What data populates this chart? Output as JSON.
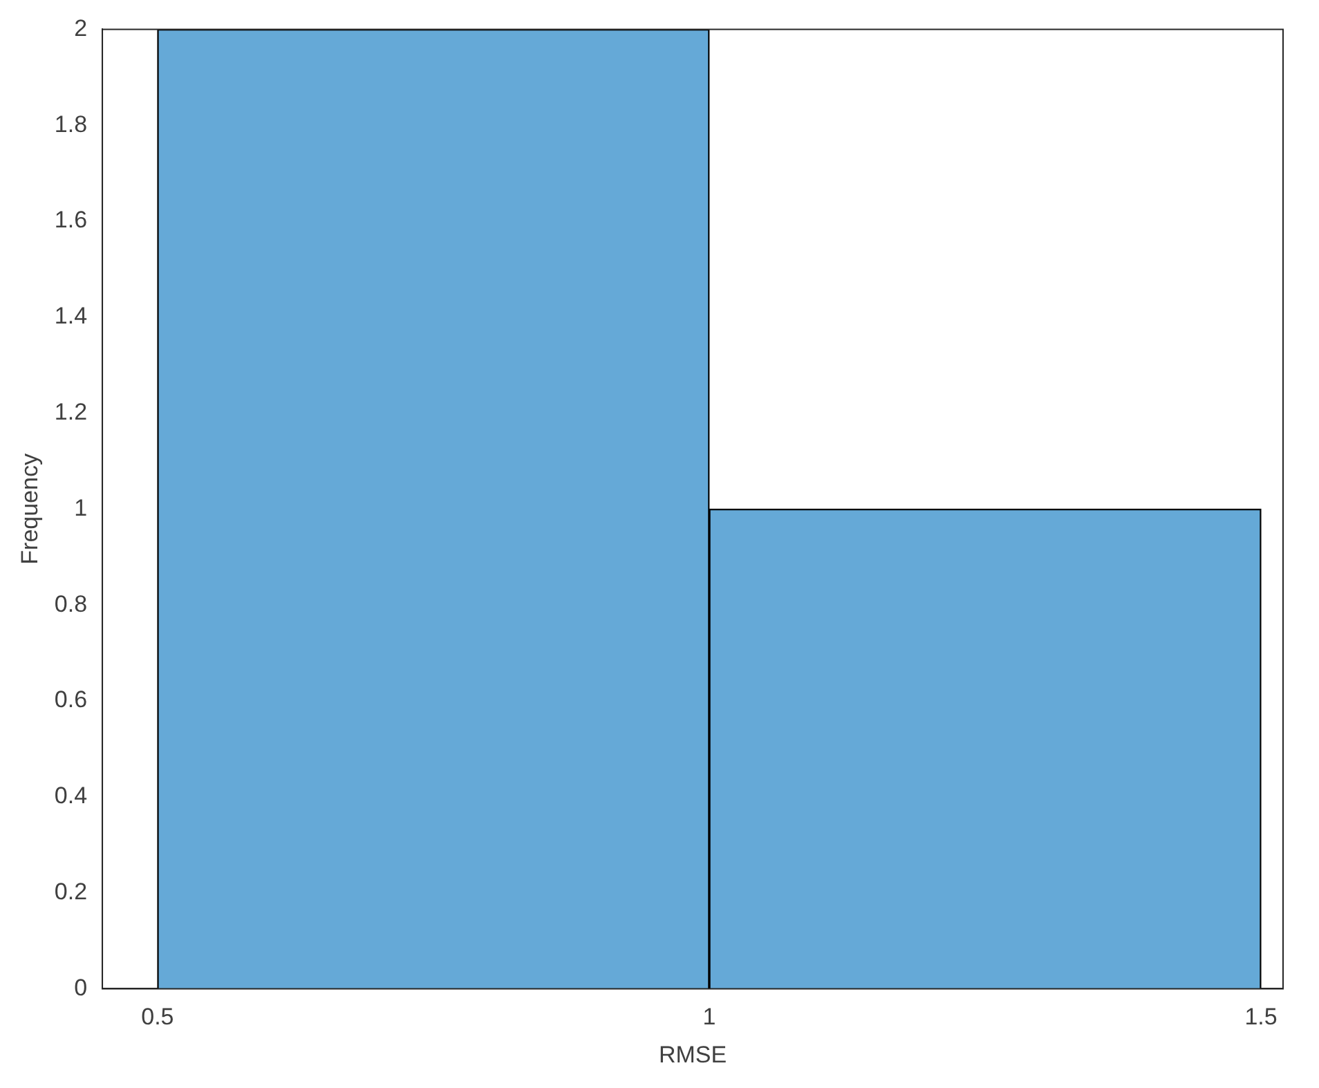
{
  "chart_data": {
    "type": "histogram",
    "xlabel": "RMSE",
    "ylabel": "Frequency",
    "bins": [
      0.5,
      1,
      1.5
    ],
    "values": [
      2,
      1
    ],
    "color": "#65a9d7",
    "xlim": [
      0.45,
      1.52
    ],
    "xticks": [
      0.5,
      1,
      1.5
    ],
    "ylim": [
      0,
      2
    ],
    "yticks": [
      0,
      0.2,
      0.4,
      0.6,
      0.8,
      1,
      1.2,
      1.4,
      1.6,
      1.8,
      2
    ],
    "grid": false,
    "legend": false
  }
}
